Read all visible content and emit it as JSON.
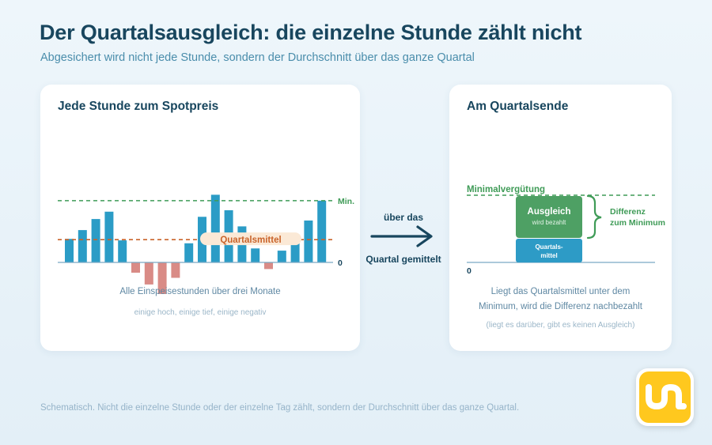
{
  "header": {
    "title": "Der Quartalsausgleich: die einzelne Stunde zählt nicht",
    "subtitle": "Abgesichert wird nicht jede Stunde, sondern der Durchschnitt über das ganze Quartal"
  },
  "left_panel": {
    "title": "Jede Stunde zum Spotpreis",
    "min_label": "Min.",
    "zero_label": "0",
    "avg_label": "Quartalsmittel",
    "caption_main": "Alle Einspeisestunden über drei Monate",
    "caption_sub": "einige hoch, einige tief, einige negativ"
  },
  "center": {
    "label_top": "über das",
    "label_bottom": "Quartal gemittelt"
  },
  "right_panel": {
    "title": "Am Quartalsende",
    "min_label": "Minimalvergütung",
    "zero_label": "0",
    "top_block_title": "Ausgleich",
    "top_block_sub": "wird bezahlt",
    "bottom_block_line1": "Quartals-",
    "bottom_block_line2": "mittel",
    "brace_label_line1": "Differenz",
    "brace_label_line2": "zum Minimum",
    "caption_line1": "Liegt das Quartalsmittel unter dem",
    "caption_line2": "Minimum, wird die Differenz nachbezahlt",
    "caption_sub": "(liegt es darüber, gibt es keinen Ausgleich)"
  },
  "footer": {
    "note": "Schematisch. Nicht die einzelne Stunde oder der einzelne Tag zählt, sondern der Durchschnitt über das ganze Quartal."
  },
  "colors": {
    "bar_positive": "#2b9cc6",
    "bar_negative": "#d98b86",
    "minimum_line": "#3f9b57",
    "average_line": "#c9632a",
    "ausgleich_block": "#4ea064",
    "mittel_block": "#2d9bc6",
    "title_text": "#18465e"
  },
  "chart_data": {
    "type": "bar",
    "title": "Jede Stunde zum Spotpreis",
    "values": [
      32,
      44,
      59,
      69,
      30,
      -14,
      -30,
      -43,
      -21,
      26,
      62,
      92,
      71,
      49,
      19,
      -9,
      16,
      28,
      57,
      84
    ],
    "minimum": 84,
    "average": 31,
    "ylim": [
      -48,
      100
    ]
  }
}
